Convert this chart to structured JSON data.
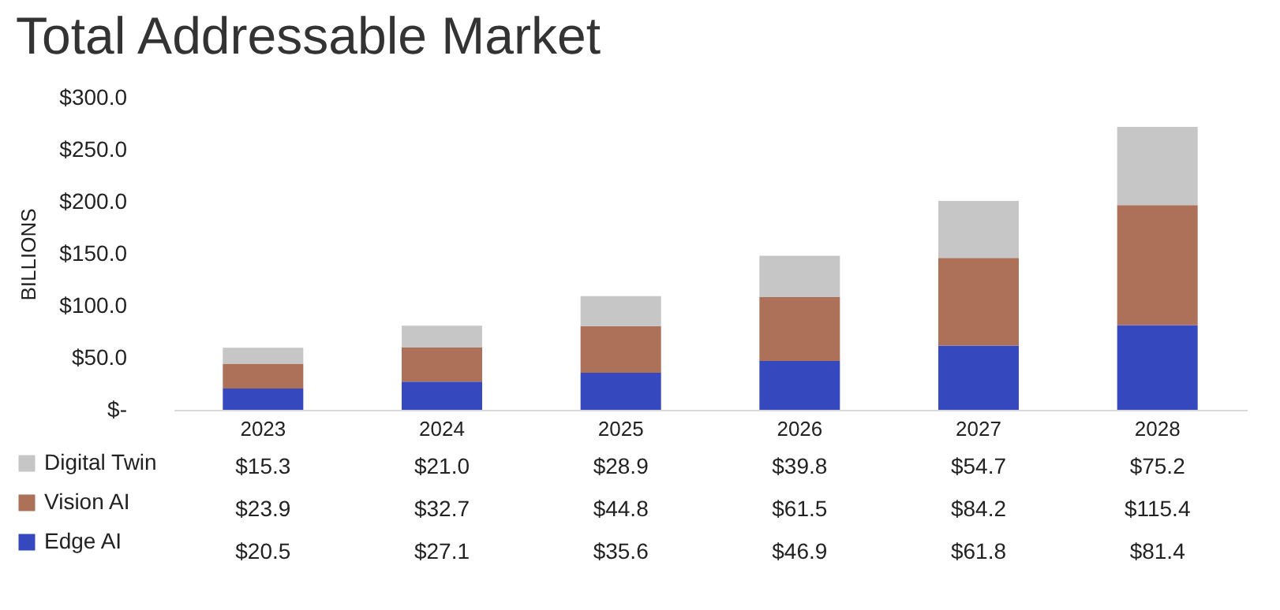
{
  "chart_data": {
    "type": "bar",
    "title": "Total Addressable Market",
    "ylabel": "BILLIONS",
    "categories": [
      "2023",
      "2024",
      "2025",
      "2026",
      "2027",
      "2028"
    ],
    "stacked": true,
    "legend": "bottom",
    "ylim": [
      0,
      300
    ],
    "yticks": [
      {
        "value": 0,
        "label": "$-"
      },
      {
        "value": 50,
        "label": "$50.0"
      },
      {
        "value": 100,
        "label": "$100.0"
      },
      {
        "value": 150,
        "label": "$150.0"
      },
      {
        "value": 200,
        "label": "$200.0"
      },
      {
        "value": 250,
        "label": "$250.0"
      },
      {
        "value": 300,
        "label": "$300.0"
      }
    ],
    "series": [
      {
        "name": "Edge AI",
        "color": "#3548be",
        "values": [
          20.5,
          27.1,
          35.6,
          46.9,
          61.8,
          81.4
        ],
        "value_labels": [
          "$20.5",
          "$27.1",
          "$35.6",
          "$46.9",
          "$61.8",
          "$81.4"
        ]
      },
      {
        "name": "Vision AI",
        "color": "#ad7159",
        "values": [
          23.9,
          32.7,
          44.8,
          61.5,
          84.2,
          115.4
        ],
        "value_labels": [
          "$23.9",
          "$32.7",
          "$44.8",
          "$61.5",
          "$84.2",
          "$115.4"
        ]
      },
      {
        "name": "Digital Twin",
        "color": "#c6c6c6",
        "values": [
          15.3,
          21.0,
          28.9,
          39.8,
          54.7,
          75.2
        ],
        "value_labels": [
          "$15.3",
          "$21.0",
          "$28.9",
          "$39.8",
          "$54.7",
          "$75.2"
        ]
      }
    ]
  }
}
